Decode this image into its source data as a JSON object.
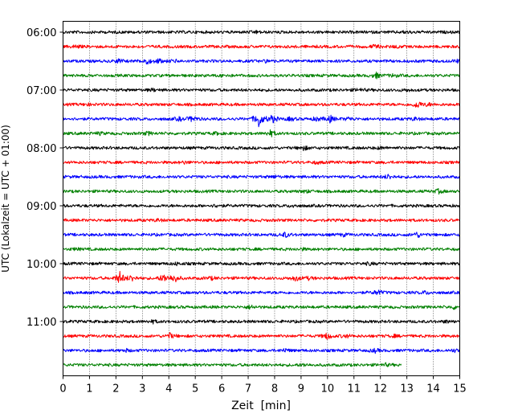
{
  "chart_data": {
    "type": "line",
    "title": "",
    "xlabel": "Zeit  [min]",
    "ylabel": "UTC (Lokalzeit = UTC + 01:00)",
    "xlim": [
      0,
      15
    ],
    "x_ticks": [
      "0",
      "1",
      "2",
      "3",
      "4",
      "5",
      "6",
      "7",
      "8",
      "9",
      "10",
      "11",
      "12",
      "13",
      "14",
      "15"
    ],
    "y_ticks": [
      "06:00",
      "07:00",
      "08:00",
      "09:00",
      "10:00",
      "11:00"
    ],
    "grid": "vertical dotted",
    "trace_interval_min": 15,
    "color_cycle": [
      "#000000",
      "#ff0000",
      "#0000ff",
      "#008000"
    ],
    "series": [
      {
        "start": "06:00",
        "end_min": 15,
        "events": [
          {
            "t": 7.3,
            "a": 1.0
          },
          {
            "t": 13.0,
            "a": 1.1
          }
        ]
      },
      {
        "start": "06:15",
        "end_min": 15,
        "events": [
          {
            "t": 0.5,
            "a": 1.3
          },
          {
            "t": 11.8,
            "a": 1.6
          },
          {
            "t": 12.6,
            "a": 1.0
          }
        ]
      },
      {
        "start": "06:30",
        "end_min": 15,
        "events": [
          {
            "t": 2.1,
            "a": 1.8
          },
          {
            "t": 3.15,
            "a": 3.0
          },
          {
            "t": 3.6,
            "a": 2.0
          },
          {
            "t": 4.2,
            "a": 1.2
          },
          {
            "t": 7.7,
            "a": 1.0
          },
          {
            "t": 14.9,
            "a": 1.2
          }
        ]
      },
      {
        "start": "06:45",
        "end_min": 15,
        "events": [
          {
            "t": 6.1,
            "a": 1.2
          },
          {
            "t": 11.85,
            "a": 2.5
          },
          {
            "t": 12.5,
            "a": 1.3
          }
        ]
      },
      {
        "start": "07:00",
        "end_min": 15,
        "events": [
          {
            "t": 3.4,
            "a": 1.0
          },
          {
            "t": 11.2,
            "a": 1.2
          },
          {
            "t": 13.0,
            "a": 1.0
          }
        ]
      },
      {
        "start": "07:15",
        "end_min": 15,
        "events": [
          {
            "t": 0.9,
            "a": 0.9
          },
          {
            "t": 13.4,
            "a": 3.5
          },
          {
            "t": 13.8,
            "a": 1.3
          }
        ]
      },
      {
        "start": "07:30",
        "end_min": 15,
        "events": [
          {
            "t": 4.4,
            "a": 1.5
          },
          {
            "t": 4.9,
            "a": 3.0
          },
          {
            "t": 7.4,
            "a": 8.5
          },
          {
            "t": 7.9,
            "a": 4.0
          },
          {
            "t": 8.6,
            "a": 1.6
          },
          {
            "t": 9.6,
            "a": 1.8
          },
          {
            "t": 10.1,
            "a": 3.2
          },
          {
            "t": 10.8,
            "a": 1.5
          },
          {
            "t": 13.3,
            "a": 1.2
          }
        ]
      },
      {
        "start": "07:45",
        "end_min": 15,
        "events": [
          {
            "t": 1.4,
            "a": 1.0
          },
          {
            "t": 3.2,
            "a": 1.5
          },
          {
            "t": 5.8,
            "a": 1.0
          },
          {
            "t": 7.85,
            "a": 3.0
          }
        ]
      },
      {
        "start": "08:00",
        "end_min": 15,
        "events": [
          {
            "t": 9.1,
            "a": 2.0
          },
          {
            "t": 12.0,
            "a": 1.0
          }
        ]
      },
      {
        "start": "08:15",
        "end_min": 15,
        "events": [
          {
            "t": 4.6,
            "a": 1.0
          },
          {
            "t": 9.6,
            "a": 1.1
          }
        ]
      },
      {
        "start": "08:30",
        "end_min": 15,
        "events": [
          {
            "t": 8.0,
            "a": 1.0
          },
          {
            "t": 12.3,
            "a": 2.2
          }
        ]
      },
      {
        "start": "08:45",
        "end_min": 15,
        "events": [
          {
            "t": 9.2,
            "a": 1.1
          },
          {
            "t": 14.2,
            "a": 1.8
          }
        ]
      },
      {
        "start": "09:00",
        "end_min": 15,
        "events": [
          {
            "t": 5.8,
            "a": 1.1
          },
          {
            "t": 8.7,
            "a": 1.0
          }
        ]
      },
      {
        "start": "09:15",
        "end_min": 15,
        "events": [
          {
            "t": 3.6,
            "a": 1.0
          }
        ]
      },
      {
        "start": "09:30",
        "end_min": 15,
        "events": [
          {
            "t": 8.4,
            "a": 2.3
          },
          {
            "t": 10.6,
            "a": 1.1
          },
          {
            "t": 13.4,
            "a": 2.5
          }
        ]
      },
      {
        "start": "09:45",
        "end_min": 15,
        "events": [
          {
            "t": 0.5,
            "a": 0.9
          },
          {
            "t": 9.0,
            "a": 1.0
          }
        ]
      },
      {
        "start": "10:00",
        "end_min": 15,
        "events": [
          {
            "t": 4.3,
            "a": 1.0
          },
          {
            "t": 11.6,
            "a": 1.0
          }
        ]
      },
      {
        "start": "10:15",
        "end_min": 15,
        "events": [
          {
            "t": 2.15,
            "a": 6.0
          },
          {
            "t": 2.6,
            "a": 3.0
          },
          {
            "t": 3.8,
            "a": 4.0
          },
          {
            "t": 4.2,
            "a": 4.5
          },
          {
            "t": 5.6,
            "a": 1.2
          },
          {
            "t": 8.8,
            "a": 2.5
          },
          {
            "t": 9.3,
            "a": 1.2
          }
        ]
      },
      {
        "start": "10:30",
        "end_min": 15,
        "events": [
          {
            "t": 11.9,
            "a": 2.5
          },
          {
            "t": 13.7,
            "a": 1.3
          }
        ]
      },
      {
        "start": "10:45",
        "end_min": 15,
        "events": [
          {
            "t": 7.1,
            "a": 1.8
          },
          {
            "t": 14.8,
            "a": 1.5
          }
        ]
      },
      {
        "start": "11:00",
        "end_min": 15,
        "events": [
          {
            "t": 3.4,
            "a": 1.2
          },
          {
            "t": 14.5,
            "a": 1.0
          }
        ]
      },
      {
        "start": "11:15",
        "end_min": 15,
        "events": [
          {
            "t": 4.05,
            "a": 2.4
          },
          {
            "t": 10.0,
            "a": 3.2
          },
          {
            "t": 10.7,
            "a": 1.5
          },
          {
            "t": 12.5,
            "a": 1.0
          }
        ]
      },
      {
        "start": "11:30",
        "end_min": 15,
        "events": [
          {
            "t": 2.4,
            "a": 1.0
          },
          {
            "t": 8.4,
            "a": 1.5
          },
          {
            "t": 11.8,
            "a": 1.6
          },
          {
            "t": 14.8,
            "a": 1.0
          }
        ]
      },
      {
        "start": "11:45",
        "end_min": 12.8,
        "events": [
          {
            "t": 9.1,
            "a": 1.0
          },
          {
            "t": 12.2,
            "a": 1.0
          }
        ]
      }
    ]
  }
}
